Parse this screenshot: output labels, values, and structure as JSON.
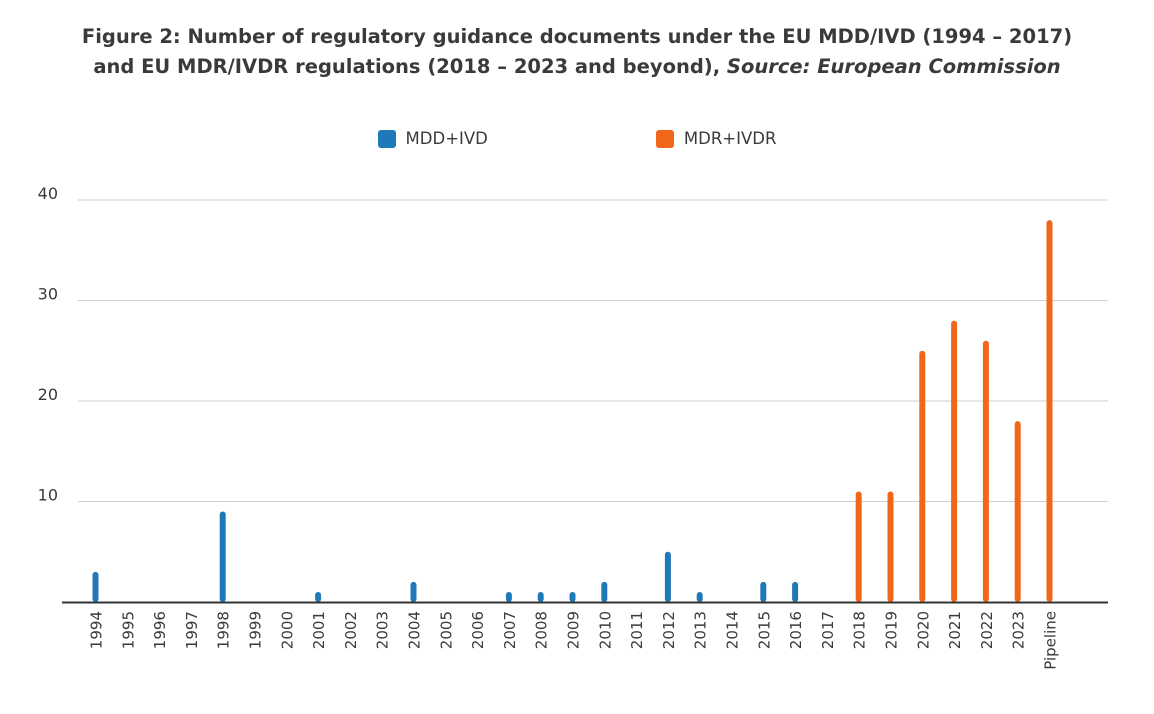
{
  "title": {
    "line1": "Figure 2: Number of regulatory guidance documents under the EU MDD/IVD (1994 – 2017)",
    "line2_main": "and EU MDR/IVDR regulations (2018 – 2023 and beyond), ",
    "line2_italic": "Source: European Commission"
  },
  "legend": [
    {
      "label": "MDD+IVD",
      "color": "#1f78b8"
    },
    {
      "label": "MDR+IVDR",
      "color": "#f0671a"
    }
  ],
  "chart_data": {
    "type": "bar",
    "title": "Figure 2: Number of regulatory guidance documents under the EU MDD/IVD (1994 – 2017) and EU MDR/IVDR regulations (2018 – 2023 and beyond), Source: European Commission",
    "categories": [
      "1994",
      "1995",
      "1996",
      "1997",
      "1998",
      "1999",
      "2000",
      "2001",
      "2002",
      "2003",
      "2004",
      "2005",
      "2006",
      "2007",
      "2008",
      "2009",
      "2010",
      "2011",
      "2012",
      "2013",
      "2014",
      "2015",
      "2016",
      "2017",
      "2018",
      "2019",
      "2020",
      "2021",
      "2022",
      "2023",
      "Pipeline"
    ],
    "series": [
      {
        "name": "MDD+IVD",
        "color": "#1f78b8",
        "values": [
          3,
          0,
          0,
          0,
          9,
          0,
          0,
          1,
          0,
          0,
          2,
          0,
          0,
          1,
          1,
          1,
          2,
          0,
          5,
          1,
          0,
          2,
          2,
          0,
          0,
          0,
          0,
          0,
          0,
          0,
          0
        ]
      },
      {
        "name": "MDR+IVDR",
        "color": "#f0671a",
        "values": [
          0,
          0,
          0,
          0,
          0,
          0,
          0,
          0,
          0,
          0,
          0,
          0,
          0,
          0,
          0,
          0,
          0,
          0,
          0,
          0,
          0,
          0,
          0,
          0,
          11,
          11,
          25,
          28,
          26,
          18,
          38
        ]
      }
    ],
    "yticks": [
      10,
      20,
      30,
      40
    ],
    "ylim": [
      0,
      40
    ],
    "xlabel": "",
    "ylabel": "",
    "grid": true,
    "legend_position": "top-center"
  }
}
